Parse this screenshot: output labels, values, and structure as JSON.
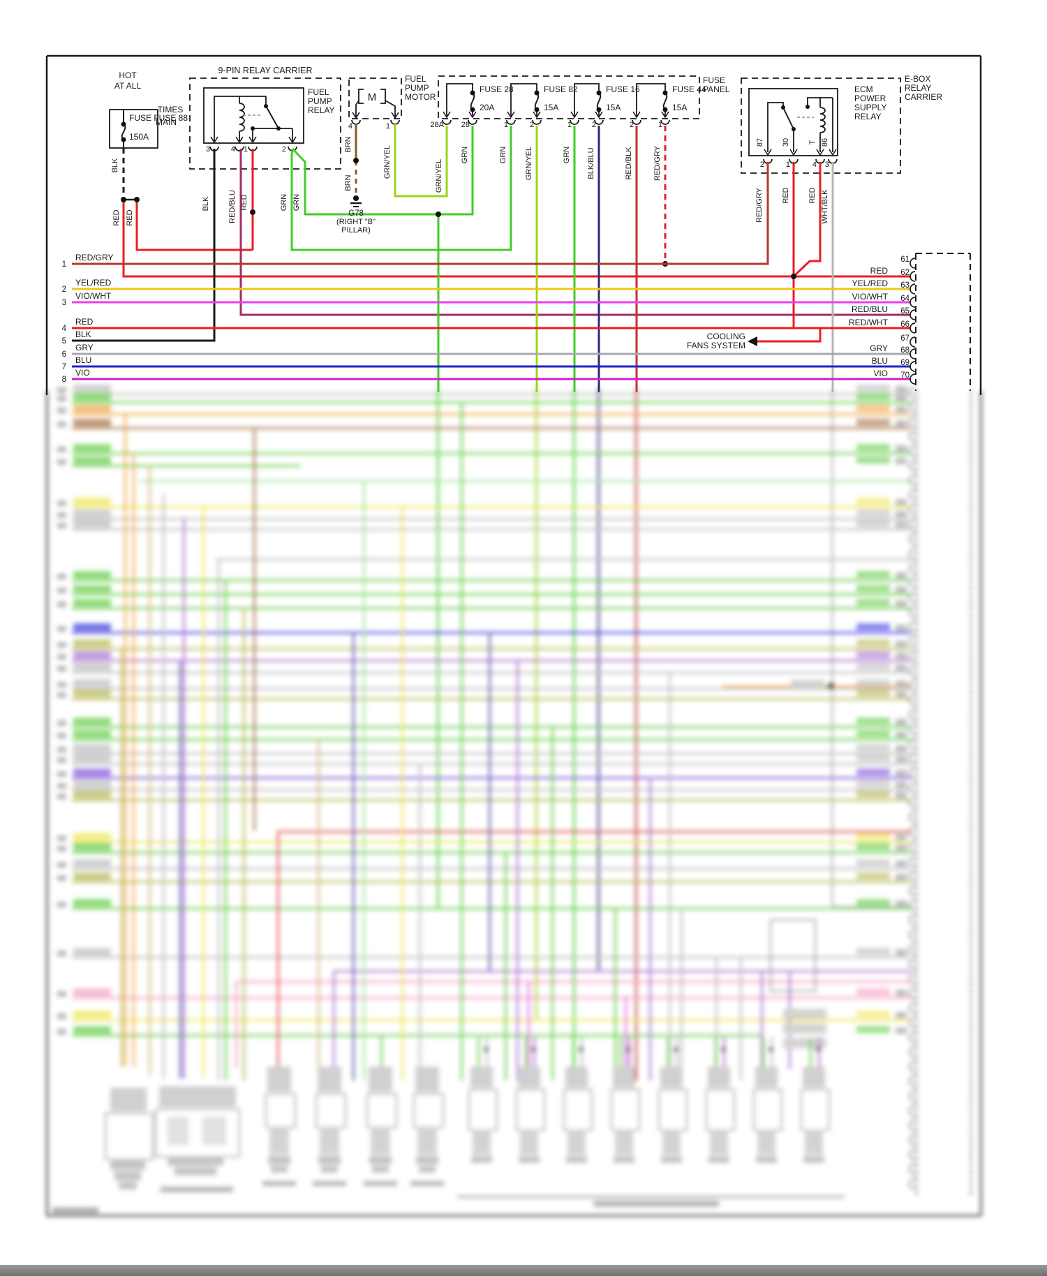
{
  "colors": {
    "black": "#1a1a1a",
    "red": "#ed1c24",
    "dark_red": "#b5382b",
    "yellow": "#ecc51c",
    "magenta": "#ee3cee",
    "violet": "#cb1fcb",
    "blue": "#2222cf",
    "grey": "#a8a8a8",
    "green": "#3ecf24",
    "chartreuse": "#9cd516",
    "navy": "#2b2b72",
    "red_blue": "#a52a64",
    "red_black": "#c23030",
    "brown": "#8a5a28",
    "white_black": "#b5b5b5",
    "structure": "#1a1a1a"
  },
  "source": {
    "hot1": "HOT",
    "hot2": "AT ALL",
    "hot3": "TIMES",
    "fuse_name": "FUSE FUSE 88",
    "fuse_name2": "MAIN",
    "rating": "150A",
    "wire": "BLK",
    "out1": "RED",
    "out2": "RED"
  },
  "relay9": {
    "title": "9-PIN RELAY CARRIER",
    "name1": "FUEL",
    "name2": "PUMP",
    "name3": "RELAY",
    "pin3": "3",
    "pin4": "4",
    "pin1": "1",
    "pin2": "2",
    "wire3": "BLK",
    "wire4": "RED/BLU",
    "wire1": "RED",
    "wire2a": "GRN",
    "wire2b": "GRN"
  },
  "motor": {
    "name1": "FUEL",
    "name2": "PUMP",
    "name3": "MOTOR",
    "symbol": "M",
    "pin4": "4",
    "pin1": "1",
    "wire4": "BRN",
    "wire4b": "BRN",
    "wire1": "GRN/YEL",
    "ground_id": "G78",
    "ground_loc1": "(RIGHT \"B\"",
    "ground_loc2": "PILLAR)"
  },
  "panel": {
    "label1": "FUSE",
    "label2": "PANEL",
    "fuses": [
      {
        "name": "FUSE 28",
        "amp": "20A",
        "pin_left": "28A",
        "pin_right": "28",
        "wire_left": "GRN/YEL",
        "wire_right": "GRN"
      },
      {
        "name": "FUSE 82",
        "amp": "15A",
        "pin_left": "1",
        "pin_right": "2",
        "wire_left": "GRN",
        "wire_right": "GRN/YEL"
      },
      {
        "name": "FUSE 16",
        "amp": "15A",
        "pin_left": "1",
        "pin_right": "2",
        "wire_left": "GRN",
        "wire_right": "BLK/BLU"
      },
      {
        "name": "FUSE 44",
        "amp": "15A",
        "pin_left": "2",
        "pin_right": "1",
        "wire_left": "RED/BLK",
        "wire_right": "RED/GRY"
      }
    ]
  },
  "ebox": {
    "carrier1": "E-BOX",
    "carrier2": "RELAY",
    "carrier3": "CARRIER",
    "name1": "ECM",
    "name2": "POWER",
    "name3": "SUPPLY",
    "name4": "RELAY",
    "int87": "87",
    "int30": "30",
    "intT": "T",
    "int86": "86",
    "pin2": "2",
    "pin1": "1",
    "pin4": "4",
    "pin3": "3",
    "wire2": "RED/GRY",
    "wire1": "RED",
    "wire4": "RED",
    "wire3": "WHT/BLK"
  },
  "cooling": {
    "line1": "COOLING",
    "line2": "FANS SYSTEM"
  },
  "left_rows": [
    {
      "n": "1",
      "label": "RED/GRY"
    },
    {
      "n": "2",
      "label": "YEL/RED"
    },
    {
      "n": "3",
      "label": "VIO/WHT"
    },
    {
      "n": "4",
      "label": "RED"
    },
    {
      "n": "5",
      "label": "BLK"
    },
    {
      "n": "6",
      "label": "GRY"
    },
    {
      "n": "7",
      "label": "BLU"
    },
    {
      "n": "8",
      "label": "VIO"
    }
  ],
  "right_rows": [
    {
      "n": "61",
      "label": ""
    },
    {
      "n": "62",
      "label": "RED"
    },
    {
      "n": "63",
      "label": "YEL/RED"
    },
    {
      "n": "64",
      "label": "VIO/WHT"
    },
    {
      "n": "65",
      "label": "RED/BLU"
    },
    {
      "n": "66",
      "label": "RED/WHT"
    },
    {
      "n": "67",
      "label": ""
    },
    {
      "n": "68",
      "label": "GRY"
    },
    {
      "n": "69",
      "label": "BLU"
    },
    {
      "n": "70",
      "label": "VIO"
    }
  ]
}
